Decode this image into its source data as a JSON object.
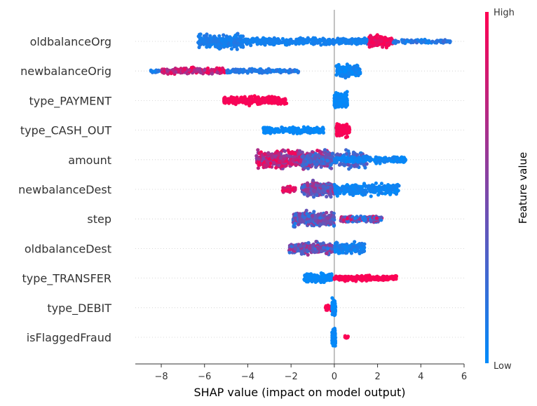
{
  "chart_data": {
    "type": "scatter",
    "xlabel": "SHAP value (impact on model output)",
    "xlim": [
      -9.2,
      6
    ],
    "xticks": [
      -8,
      -6,
      -4,
      -2,
      0,
      2,
      4,
      6
    ],
    "xtick_labels": [
      "−8",
      "−6",
      "−4",
      "−2",
      "0",
      "2",
      "4",
      "6"
    ],
    "colorbar": {
      "label": "Feature value",
      "high_label": "High",
      "low_label": "Low",
      "low_color": "#008bfb",
      "high_color": "#ff0052"
    },
    "features": [
      {
        "name": "oldbalanceOrg",
        "clusters": [
          {
            "x0": -6.3,
            "x1": -4.2,
            "spread": 0.7,
            "v0": 0.05,
            "v1": 0.15,
            "n": 260
          },
          {
            "x0": -4.2,
            "x1": 1.6,
            "spread": 0.35,
            "v0": 0.05,
            "v1": 0.1,
            "n": 380
          },
          {
            "x0": 1.6,
            "x1": 2.7,
            "spread": 0.55,
            "v0": 0.85,
            "v1": 1.0,
            "n": 180
          },
          {
            "x0": 2.7,
            "x1": 5.4,
            "spread": 0.2,
            "v0": 0.05,
            "v1": 0.25,
            "n": 90
          }
        ]
      },
      {
        "name": "newbalanceOrig",
        "clusters": [
          {
            "x0": -8.5,
            "x1": -7.0,
            "spread": 0.18,
            "v0": 0.05,
            "v1": 0.2,
            "n": 60
          },
          {
            "x0": -8.0,
            "x1": -5.0,
            "spread": 0.35,
            "v0": 0.6,
            "v1": 1.0,
            "n": 160
          },
          {
            "x0": -5.0,
            "x1": -1.6,
            "spread": 0.25,
            "v0": 0.05,
            "v1": 0.2,
            "n": 160
          },
          {
            "x0": 0.1,
            "x1": 1.2,
            "spread": 0.65,
            "v0": 0.0,
            "v1": 0.1,
            "n": 160
          }
        ]
      },
      {
        "name": "type_PAYMENT",
        "clusters": [
          {
            "x0": -5.1,
            "x1": -2.2,
            "spread": 0.45,
            "v0": 0.95,
            "v1": 1.0,
            "n": 240
          },
          {
            "x0": 0.0,
            "x1": 0.6,
            "spread": 0.8,
            "v0": 0.0,
            "v1": 0.05,
            "n": 200
          }
        ]
      },
      {
        "name": "type_CASH_OUT",
        "clusters": [
          {
            "x0": -3.3,
            "x1": -0.5,
            "spread": 0.35,
            "v0": 0.0,
            "v1": 0.05,
            "n": 200
          },
          {
            "x0": 0.1,
            "x1": 0.7,
            "spread": 0.65,
            "v0": 0.95,
            "v1": 1.0,
            "n": 180
          }
        ]
      },
      {
        "name": "amount",
        "clusters": [
          {
            "x0": -3.6,
            "x1": -0.2,
            "spread": 0.95,
            "v0": 0.45,
            "v1": 1.0,
            "n": 480
          },
          {
            "x0": -1.5,
            "x1": 1.5,
            "spread": 0.95,
            "v0": 0.1,
            "v1": 0.45,
            "n": 280
          },
          {
            "x0": 0.0,
            "x1": 3.3,
            "spread": 0.35,
            "v0": 0.0,
            "v1": 0.1,
            "n": 200
          }
        ]
      },
      {
        "name": "newbalanceDest",
        "clusters": [
          {
            "x0": -2.5,
            "x1": -1.8,
            "spread": 0.3,
            "v0": 0.75,
            "v1": 1.0,
            "n": 30
          },
          {
            "x0": -1.5,
            "x1": 0.0,
            "spread": 0.75,
            "v0": 0.2,
            "v1": 0.7,
            "n": 240
          },
          {
            "x0": 0.0,
            "x1": 3.0,
            "spread": 0.6,
            "v0": 0.0,
            "v1": 0.1,
            "n": 260
          }
        ]
      },
      {
        "name": "step",
        "clusters": [
          {
            "x0": -1.9,
            "x1": 0.0,
            "spread": 0.7,
            "v0": 0.1,
            "v1": 0.6,
            "n": 300
          },
          {
            "x0": 0.3,
            "x1": 2.2,
            "spread": 0.3,
            "v0": 0.05,
            "v1": 0.95,
            "n": 200
          }
        ]
      },
      {
        "name": "oldbalanceDest",
        "clusters": [
          {
            "x0": -2.1,
            "x1": 0.0,
            "spread": 0.65,
            "v0": 0.1,
            "v1": 0.7,
            "n": 240
          },
          {
            "x0": 0.0,
            "x1": 1.4,
            "spread": 0.6,
            "v0": 0.0,
            "v1": 0.15,
            "n": 160
          }
        ]
      },
      {
        "name": "type_TRANSFER",
        "clusters": [
          {
            "x0": -1.4,
            "x1": -0.1,
            "spread": 0.45,
            "v0": 0.0,
            "v1": 0.05,
            "n": 160
          },
          {
            "x0": 0.0,
            "x1": 2.9,
            "spread": 0.28,
            "v0": 0.95,
            "v1": 1.0,
            "n": 220
          }
        ]
      },
      {
        "name": "type_DEBIT",
        "clusters": [
          {
            "x0": -0.4,
            "x1": -0.1,
            "spread": 0.25,
            "v0": 0.95,
            "v1": 1.0,
            "n": 24
          },
          {
            "x0": -0.1,
            "x1": 0.05,
            "spread": 0.85,
            "v0": 0.0,
            "v1": 0.05,
            "n": 120
          }
        ]
      },
      {
        "name": "isFlaggedFraud",
        "clusters": [
          {
            "x0": -0.1,
            "x1": 0.05,
            "spread": 0.85,
            "v0": 0.0,
            "v1": 0.05,
            "n": 120
          },
          {
            "x0": 0.5,
            "x1": 0.65,
            "spread": 0.15,
            "v0": 0.95,
            "v1": 1.0,
            "n": 8
          }
        ]
      }
    ]
  }
}
